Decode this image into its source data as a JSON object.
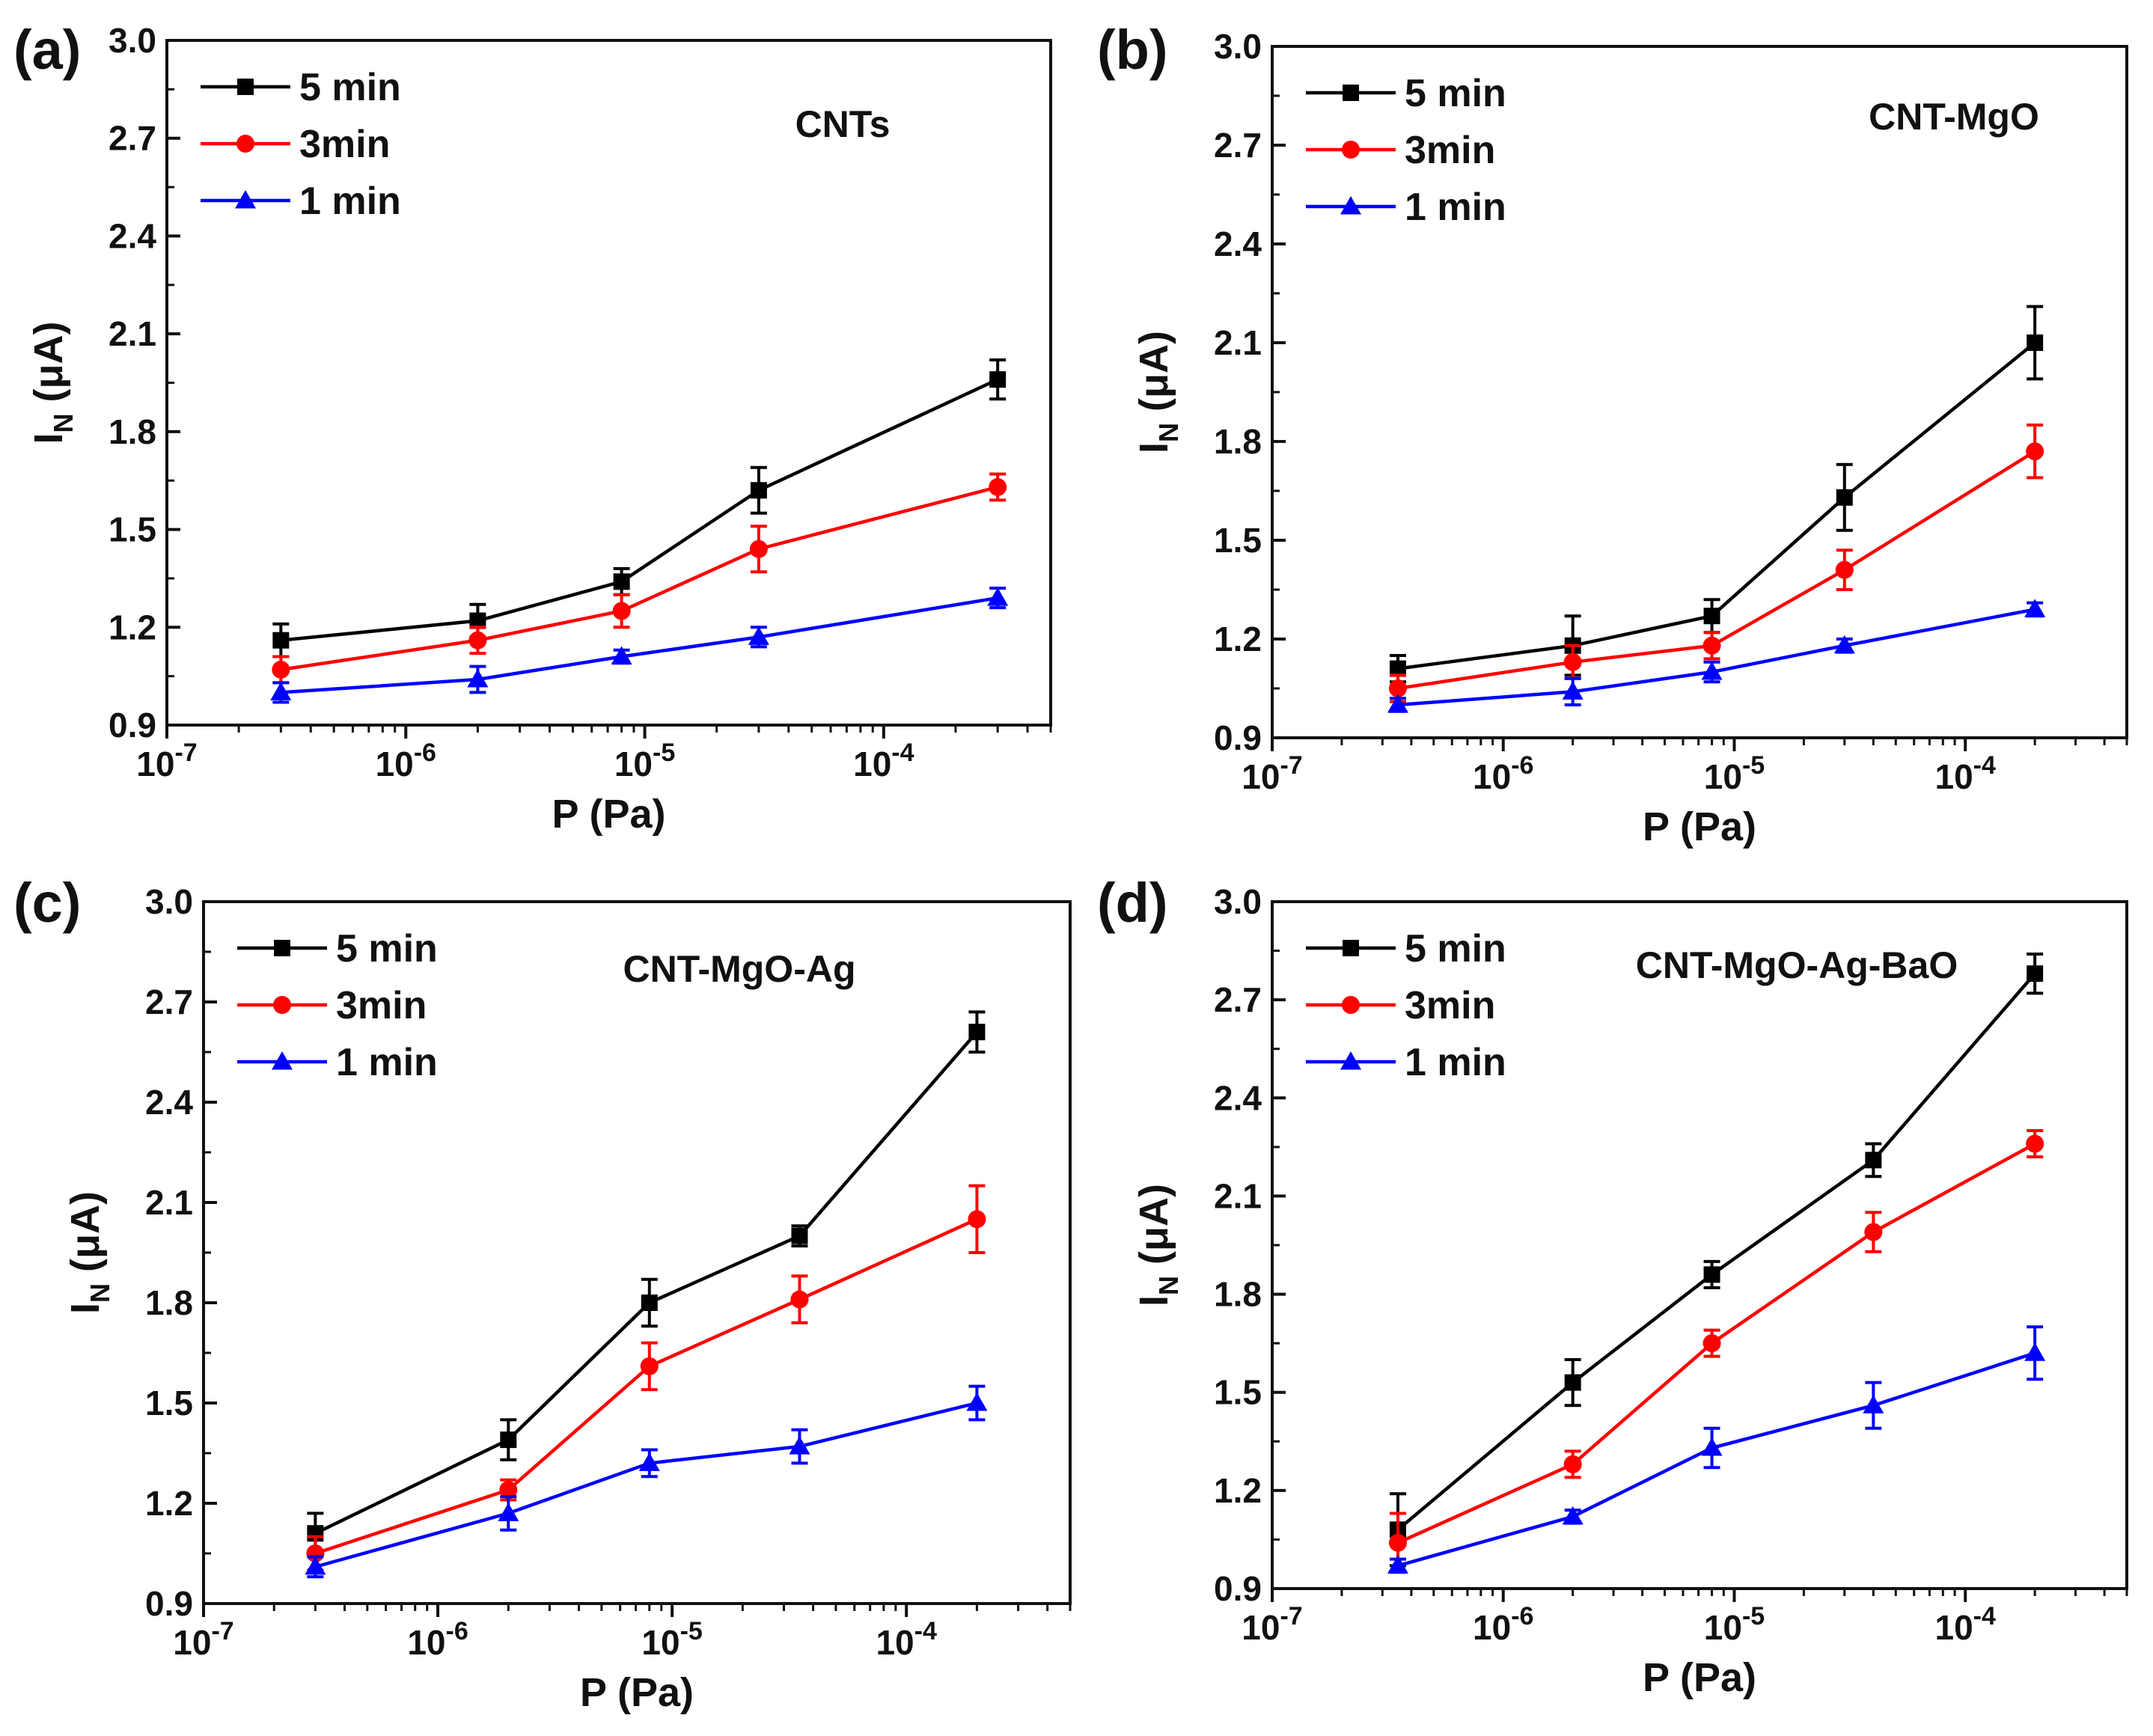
{
  "chart_data": [
    {
      "panel": "(a)",
      "type": "line",
      "title": "CNTs",
      "xlabel": "P (Pa)",
      "ylabel": "I_N (μA)",
      "ylabel_main": "I",
      "ylabel_sub": "N",
      "ylabel_unit": " (μA)",
      "xscale": "log",
      "xlim": [
        1e-07,
        0.0005
      ],
      "ylim": [
        0.9,
        3.0
      ],
      "yticks": [
        "0.9",
        "1.2",
        "1.5",
        "1.8",
        "2.1",
        "2.4",
        "2.7",
        "3.0"
      ],
      "xticks": [
        {
          "mant": "10",
          "exp": "-7"
        },
        {
          "mant": "10",
          "exp": "-6"
        },
        {
          "mant": "10",
          "exp": "-5"
        },
        {
          "mant": "10",
          "exp": "-4"
        }
      ],
      "legend_position": "top-left",
      "series": [
        {
          "name": "5 min",
          "color": "#000000",
          "marker": "square",
          "x": [
            3e-07,
            2e-06,
            8e-06,
            3e-05,
            0.0003
          ],
          "values": [
            1.16,
            1.22,
            1.34,
            1.62,
            1.96
          ],
          "errors": [
            0.05,
            0.05,
            0.04,
            0.07,
            0.06
          ]
        },
        {
          "name": "3min",
          "color": "#ff0000",
          "marker": "circle",
          "x": [
            3e-07,
            2e-06,
            8e-06,
            3e-05,
            0.0003
          ],
          "values": [
            1.07,
            1.16,
            1.25,
            1.44,
            1.63
          ],
          "errors": [
            0.04,
            0.04,
            0.05,
            0.07,
            0.04
          ]
        },
        {
          "name": "1 min",
          "color": "#0000ff",
          "marker": "triangle",
          "x": [
            3e-07,
            2e-06,
            8e-06,
            3e-05,
            0.0003
          ],
          "values": [
            1.0,
            1.04,
            1.11,
            1.17,
            1.29
          ],
          "errors": [
            0.03,
            0.04,
            0.02,
            0.03,
            0.03
          ]
        }
      ]
    },
    {
      "panel": "(b)",
      "type": "line",
      "title": "CNT-MgO",
      "xlabel": "P (Pa)",
      "ylabel": "I_N (μA)",
      "ylabel_main": "I",
      "ylabel_sub": "N",
      "ylabel_unit": " (μA)",
      "xscale": "log",
      "xlim": [
        1e-07,
        0.0005
      ],
      "ylim": [
        0.9,
        3.0
      ],
      "yticks": [
        "0.9",
        "1.2",
        "1.5",
        "1.8",
        "2.1",
        "2.4",
        "2.7",
        "3.0"
      ],
      "xticks": [
        {
          "mant": "10",
          "exp": "-7"
        },
        {
          "mant": "10",
          "exp": "-6"
        },
        {
          "mant": "10",
          "exp": "-5"
        },
        {
          "mant": "10",
          "exp": "-4"
        }
      ],
      "legend_position": "top-left",
      "series": [
        {
          "name": "5 min",
          "color": "#000000",
          "marker": "square",
          "x": [
            3.5e-07,
            2e-06,
            8e-06,
            3e-05,
            0.0002
          ],
          "values": [
            1.11,
            1.18,
            1.27,
            1.63,
            2.1
          ],
          "errors": [
            0.04,
            0.09,
            0.05,
            0.1,
            0.11
          ]
        },
        {
          "name": "3min",
          "color": "#ff0000",
          "marker": "circle",
          "x": [
            3.5e-07,
            2e-06,
            8e-06,
            3e-05,
            0.0002
          ],
          "values": [
            1.05,
            1.13,
            1.18,
            1.41,
            1.77
          ],
          "errors": [
            0.04,
            0.05,
            0.04,
            0.06,
            0.08
          ]
        },
        {
          "name": "1 min",
          "color": "#0000ff",
          "marker": "triangle",
          "x": [
            3.5e-07,
            2e-06,
            8e-06,
            3e-05,
            0.0002
          ],
          "values": [
            1.0,
            1.04,
            1.1,
            1.18,
            1.29
          ],
          "errors": [
            0.02,
            0.04,
            0.03,
            0.02,
            0.02
          ]
        }
      ]
    },
    {
      "panel": "(c)",
      "type": "line",
      "title": "CNT-MgO-Ag",
      "xlabel": "P (Pa)",
      "ylabel": "I_N (μA)",
      "ylabel_main": "I",
      "ylabel_sub": "N",
      "ylabel_unit": " (μA)",
      "xscale": "log",
      "xlim": [
        1e-07,
        0.0005
      ],
      "ylim": [
        0.9,
        3.0
      ],
      "yticks": [
        "0.9",
        "1.2",
        "1.5",
        "1.8",
        "2.1",
        "2.4",
        "2.7",
        "3.0"
      ],
      "xticks": [
        {
          "mant": "10",
          "exp": "-7"
        },
        {
          "mant": "10",
          "exp": "-6"
        },
        {
          "mant": "10",
          "exp": "-5"
        },
        {
          "mant": "10",
          "exp": "-4"
        }
      ],
      "legend_position": "top-left",
      "series": [
        {
          "name": "5 min",
          "color": "#000000",
          "marker": "square",
          "x": [
            3e-07,
            2e-06,
            8e-06,
            3.5e-05,
            0.0002
          ],
          "values": [
            1.11,
            1.39,
            1.8,
            2.0,
            2.61
          ],
          "errors": [
            0.06,
            0.06,
            0.07,
            0.03,
            0.06
          ]
        },
        {
          "name": "3min",
          "color": "#ff0000",
          "marker": "circle",
          "x": [
            3e-07,
            2e-06,
            8e-06,
            3.5e-05,
            0.0002
          ],
          "values": [
            1.05,
            1.24,
            1.61,
            1.81,
            2.05
          ],
          "errors": [
            0.05,
            0.03,
            0.07,
            0.07,
            0.1
          ]
        },
        {
          "name": "1 min",
          "color": "#0000ff",
          "marker": "triangle",
          "x": [
            3e-07,
            2e-06,
            8e-06,
            3.5e-05,
            0.0002
          ],
          "values": [
            1.01,
            1.17,
            1.32,
            1.37,
            1.5
          ],
          "errors": [
            0.03,
            0.05,
            0.04,
            0.05,
            0.05
          ]
        }
      ]
    },
    {
      "panel": "(d)",
      "type": "line",
      "title": "CNT-MgO-Ag-BaO",
      "xlabel": "P (Pa)",
      "ylabel": "I_N (μA)",
      "ylabel_main": "I",
      "ylabel_sub": "N",
      "ylabel_unit": " (μA)",
      "xscale": "log",
      "xlim": [
        1e-07,
        0.0005
      ],
      "ylim": [
        0.9,
        3.0
      ],
      "yticks": [
        "0.9",
        "1.2",
        "1.5",
        "1.8",
        "2.1",
        "2.4",
        "2.7",
        "3.0"
      ],
      "xticks": [
        {
          "mant": "10",
          "exp": "-7"
        },
        {
          "mant": "10",
          "exp": "-6"
        },
        {
          "mant": "10",
          "exp": "-5"
        },
        {
          "mant": "10",
          "exp": "-4"
        }
      ],
      "legend_position": "top-left",
      "series": [
        {
          "name": "5 min",
          "color": "#000000",
          "marker": "square",
          "x": [
            3.5e-07,
            2e-06,
            8e-06,
            4e-05,
            0.0002
          ],
          "values": [
            1.08,
            1.53,
            1.86,
            2.21,
            2.78
          ],
          "errors": [
            0.11,
            0.07,
            0.04,
            0.05,
            0.06
          ]
        },
        {
          "name": "3min",
          "color": "#ff0000",
          "marker": "circle",
          "x": [
            3.5e-07,
            2e-06,
            8e-06,
            4e-05,
            0.0002
          ],
          "values": [
            1.04,
            1.28,
            1.65,
            1.99,
            2.26
          ],
          "errors": [
            0.09,
            0.04,
            0.04,
            0.06,
            0.04
          ]
        },
        {
          "name": "1 min",
          "color": "#0000ff",
          "marker": "triangle",
          "x": [
            3.5e-07,
            2e-06,
            8e-06,
            4e-05,
            0.0002
          ],
          "values": [
            0.97,
            1.12,
            1.33,
            1.46,
            1.62
          ],
          "errors": [
            0.02,
            0.02,
            0.06,
            0.07,
            0.08
          ]
        }
      ]
    }
  ]
}
